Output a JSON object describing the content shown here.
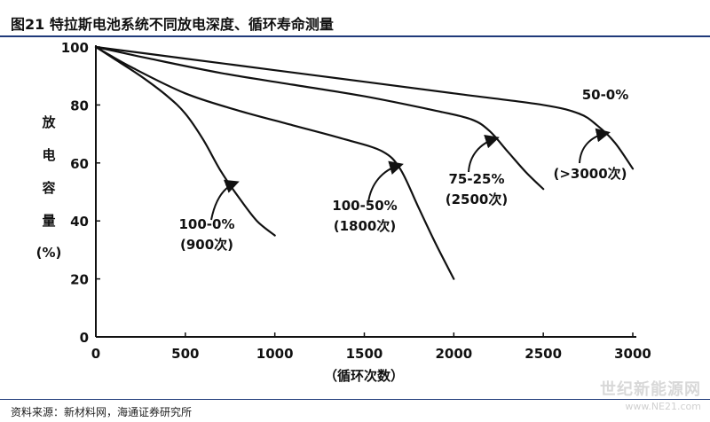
{
  "title": "图21 特拉斯电池系统不同放电深度、循环寿命测量",
  "source": "资料来源：新材料网，海通证券研究所",
  "watermark": "世纪新能源网",
  "watermark_url": "www.NE21.com",
  "chart_data": {
    "type": "line",
    "ylabel_chars": [
      "放",
      "电",
      "容",
      "量",
      "(%)"
    ],
    "xlabel": "（循环次数）",
    "xlim": [
      0,
      3000
    ],
    "ylim": [
      0,
      100
    ],
    "xticks": [
      "0",
      "500",
      "1000",
      "1500",
      "2000",
      "2500",
      "3000"
    ],
    "yticks": [
      "0",
      "20",
      "40",
      "60",
      "80",
      "100"
    ],
    "grid": false,
    "series": [
      {
        "name": "100-0%(900次)",
        "label_lines": [
          "100-0%",
          "(900次)"
        ],
        "x": [
          0,
          100,
          250,
          400,
          500,
          600,
          700,
          800,
          900,
          1000
        ],
        "y": [
          100,
          96,
          90,
          83,
          77,
          68,
          57,
          48,
          40,
          35
        ]
      },
      {
        "name": "100-50%(1800次)",
        "label_lines": [
          "100-50%",
          "(1800次)"
        ],
        "x": [
          0,
          200,
          500,
          800,
          1100,
          1400,
          1600,
          1700,
          1800,
          1900,
          2000
        ],
        "y": [
          100,
          93,
          84,
          78,
          73,
          68,
          64,
          58,
          45,
          32,
          20
        ]
      },
      {
        "name": "75-25%(2500次)",
        "label_lines": [
          "75-25%",
          "(2500次)"
        ],
        "x": [
          0,
          300,
          700,
          1100,
          1500,
          1900,
          2100,
          2200,
          2300,
          2400,
          2500
        ],
        "y": [
          100,
          96,
          91,
          87,
          83,
          78,
          75,
          71,
          64,
          57,
          51
        ]
      },
      {
        "name": "50-0%(>3000次)",
        "label_lines": [
          "50-0%",
          "(>3000次)"
        ],
        "x": [
          0,
          500,
          1000,
          1500,
          2000,
          2500,
          2700,
          2800,
          2900,
          3000
        ],
        "y": [
          100,
          96,
          92,
          88,
          84,
          80,
          77,
          73,
          67,
          58
        ]
      }
    ]
  }
}
